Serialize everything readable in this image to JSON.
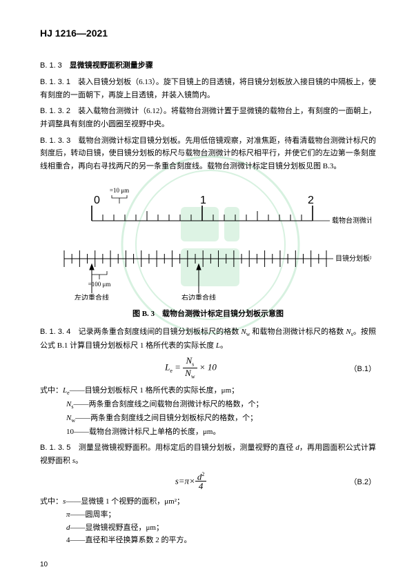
{
  "header": {
    "code": "HJ 1216—2021"
  },
  "sec_b13": {
    "num": "B. 1. 3",
    "title": "显微镜视野面积测量步骤"
  },
  "p_b131": {
    "label": "B. 1. 3. 1",
    "text": "装入目镜分划板（6.13）。旋下目镜上的目透镜，将目镜分划板放入接目镜的中隔板上，使有刻度的一面朝下，再旋上目透镜，并装入镜筒内。"
  },
  "p_b132": {
    "label": "B. 1. 3. 2",
    "text": "装入载物台测微计（6.12）。将载物台测微计置于显微镜的载物台上，有刻度的一面朝上，并调整具有刻度的小圆圈至视野中央。"
  },
  "p_b133": {
    "label": "B. 1. 3. 3",
    "text": "载物台测微计标定目镜分划板。先用低倍镜观察，对准焦距，待看清载物台测微计标尺的刻度后，转动目镜，使目镜分划板的标尺与载物台测微计的标尺相平行，并使它们的左边第一条刻度线相重合，再向右寻找两尺的另一条重合刻度线。载物台测微计标定目镜分划板见图 B.3。"
  },
  "figure": {
    "top_label": "=10 μm",
    "bottom_label": "=100 μm",
    "main_ticks": [
      "0",
      "1",
      "2"
    ],
    "right_labels": {
      "upper": "载物台测微计标尺",
      "lower": "目镜分划板标尺"
    },
    "bottom_labels": {
      "left": "左边重合线",
      "right": "右边重合线"
    },
    "caption": "图 B. 3　载物台测微计标定目镜分划板示意图",
    "colors": {
      "line": "#000000"
    }
  },
  "p_b134": {
    "label": "B. 1. 3. 4",
    "text_a": "记录两条重合刻度线间的目镜分划板标尺的格数 ",
    "nw": "N",
    "nw_sub": "w",
    "text_b": " 和载物台测微计标尺的格数 ",
    "ns": "N",
    "ns_sub": "s",
    "text_c": "。按照公式 B.1 计算目镜分划板标尺 1 格所代表的实际长度 ",
    "le": "L",
    "text_d": "。"
  },
  "formula1": {
    "lhs": "L",
    "lhs_sub": "e",
    "num": "N",
    "num_sub": "s",
    "den": "N",
    "den_sub": "w",
    "tail": " × 10",
    "eqnum": "（B.1）"
  },
  "defs1": {
    "intro": "式中：",
    "d1": {
      "sym": "L",
      "sub": "e",
      "text": "——目镜分划板标尺 1 格所代表的实际长度，μm；"
    },
    "d2": {
      "sym": "N",
      "sub": "s",
      "text": "——两条重合刻度线之间载物台测微计标尺的格数，个；"
    },
    "d3": {
      "sym": "N",
      "sub": "w",
      "text": "——两条重合刻度线之间目镜分划板标尺的格数，个；"
    },
    "d4": {
      "sym": "10",
      "text": "——载物台测微计标尺上单格的长度，μm。"
    }
  },
  "p_b135": {
    "label": "B. 1. 3. 5",
    "text_a": "测量显微镜视野面积。用标定后的目镜分划板，测量视野的直径 ",
    "d": "d",
    "text_b": "，再用圆面积公式计算视野面积 ",
    "s": "s",
    "text_c": "。"
  },
  "formula2": {
    "lhs": "s",
    "mid": "=π×",
    "num": "d",
    "num_sup": "2",
    "den": "4",
    "eqnum": "（B.2）"
  },
  "defs2": {
    "intro": "式中：",
    "d1": {
      "sym": "s",
      "text": "——显微镜 1 个视野的面积，μm²；"
    },
    "d2": {
      "sym": "π",
      "text": "——圆周率；"
    },
    "d3": {
      "sym": "d",
      "text": "——显微镜视野直径，μm；"
    },
    "d4": {
      "sym": "4",
      "text": "——直径和半径换算系数 2 的平方。"
    }
  },
  "pagenum": "10"
}
